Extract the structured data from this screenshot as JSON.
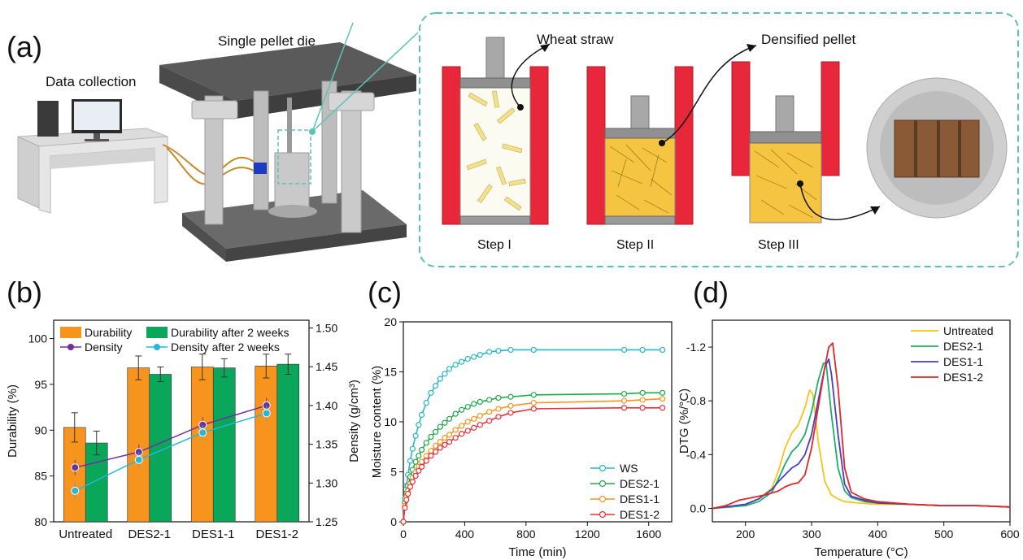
{
  "panel_a": {
    "label": "(a)",
    "data_collection": "Data collection",
    "die_label": "Single pellet die",
    "wheat_straw": "Wheat straw",
    "densified_pellet": "Densified pellet",
    "steps": [
      "Step I",
      "Step II",
      "Step III"
    ]
  },
  "colors": {
    "orange": "#f7941d",
    "green": "#0aa65a",
    "purple": "#7030a0",
    "cyan": "#29b6d6",
    "ws": "#29b6c6",
    "des21": "#22a84a",
    "des11": "#f7941d",
    "des12": "#e8303a",
    "untreated_dtg": "#f5c518",
    "des21_dtg": "#1fae6a",
    "des11_dtg": "#4b3cc4",
    "des12_dtg": "#e02828",
    "teal_border": "#5cc4b4",
    "die_red": "#e8283a"
  },
  "chart_data": [
    {
      "id": "b",
      "panel_label": "(b)",
      "type": "bar",
      "categories": [
        "Untreated",
        "DES2-1",
        "DES1-1",
        "DES1-2"
      ],
      "ylabel": "Durability (%)",
      "ylim": [
        80,
        102
      ],
      "y_ticks": [
        "80",
        "85",
        "90",
        "95",
        "100"
      ],
      "y2label": "Density (g/cm³)",
      "y2lim": [
        1.25,
        1.51
      ],
      "y2_ticks": [
        "1.25",
        "1.30",
        "1.35",
        "1.40",
        "1.45",
        "1.50"
      ],
      "legend": "top",
      "bar_series": [
        {
          "name": "Durability",
          "values": [
            90.3,
            96.8,
            96.9,
            97.0
          ],
          "errors": [
            1.6,
            1.3,
            1.4,
            1.3
          ]
        },
        {
          "name": "Durability after 2 weeks",
          "values": [
            88.6,
            96.1,
            96.8,
            97.2
          ],
          "errors": [
            1.3,
            0.8,
            1.0,
            1.1
          ]
        }
      ],
      "line_series": [
        {
          "name": "Density",
          "values": [
            1.32,
            1.34,
            1.375,
            1.4
          ],
          "errors": [
            0.01,
            0.01,
            0.01,
            0.01
          ]
        },
        {
          "name": "Density after 2 weeks",
          "values": [
            1.29,
            1.33,
            1.365,
            1.39
          ],
          "errors": [
            0.01,
            0.01,
            0.01,
            0.01
          ]
        }
      ]
    },
    {
      "id": "c",
      "panel_label": "(c)",
      "type": "line",
      "xlabel": "Time (min)",
      "ylabel": "Moisture content (%)",
      "xlim": [
        0,
        1750
      ],
      "ylim": [
        0,
        20
      ],
      "x_ticks": [
        "0",
        "400",
        "800",
        "1200",
        "1600"
      ],
      "y_ticks": [
        "0",
        "5",
        "10",
        "15",
        "20"
      ],
      "legend": "bottom-right",
      "x": [
        0,
        10,
        20,
        30,
        45,
        60,
        80,
        100,
        120,
        150,
        180,
        210,
        240,
        270,
        300,
        340,
        380,
        420,
        460,
        500,
        560,
        620,
        700,
        850,
        1440,
        1560,
        1690
      ],
      "series": [
        {
          "name": "WS",
          "values": [
            0,
            2.3,
            3.6,
            4.7,
            6.1,
            7.3,
            8.6,
            9.7,
            10.7,
            11.9,
            12.9,
            13.6,
            14.3,
            14.8,
            15.3,
            15.7,
            16.0,
            16.3,
            16.5,
            16.7,
            17.0,
            17.1,
            17.2,
            17.2,
            17.2,
            17.2,
            17.2
          ]
        },
        {
          "name": "DES2-1",
          "values": [
            0,
            1.9,
            2.9,
            3.6,
            4.5,
            5.2,
            6.0,
            6.6,
            7.2,
            7.9,
            8.5,
            9.0,
            9.5,
            9.9,
            10.3,
            10.8,
            11.2,
            11.5,
            11.8,
            12.0,
            12.2,
            12.4,
            12.5,
            12.7,
            12.8,
            12.9,
            12.9
          ]
        },
        {
          "name": "DES1-1",
          "values": [
            0,
            1.6,
            2.5,
            3.1,
            3.8,
            4.4,
            5.0,
            5.5,
            6.0,
            6.6,
            7.1,
            7.6,
            8.0,
            8.4,
            8.7,
            9.2,
            9.6,
            10.0,
            10.3,
            10.6,
            11.0,
            11.3,
            11.6,
            11.9,
            12.1,
            12.2,
            12.3
          ]
        },
        {
          "name": "DES1-2",
          "values": [
            0,
            1.4,
            2.2,
            2.8,
            3.5,
            4.0,
            4.6,
            5.1,
            5.5,
            6.1,
            6.6,
            7.0,
            7.4,
            7.7,
            8.0,
            8.4,
            8.8,
            9.1,
            9.4,
            9.7,
            10.1,
            10.5,
            10.9,
            11.3,
            11.4,
            11.4,
            11.4
          ]
        }
      ]
    },
    {
      "id": "d",
      "panel_label": "(d)",
      "type": "line",
      "xlabel": "Temperature (°C)",
      "ylabel": "DTG (%/°C)",
      "xlim": [
        150,
        600
      ],
      "ylim": [
        0.1,
        -1.4
      ],
      "inverted_y": true,
      "x_ticks": [
        "200",
        "300",
        "400",
        "500",
        "600"
      ],
      "y_ticks": [
        "0.0",
        "-0.4",
        "-0.8",
        "-1.2"
      ],
      "legend": "top-right",
      "series": [
        {
          "name": "Untreated",
          "x": [
            150,
            180,
            200,
            220,
            240,
            250,
            260,
            270,
            280,
            290,
            297,
            302,
            310,
            320,
            330,
            340,
            350,
            370,
            400,
            450,
            500,
            550,
            600
          ],
          "values": [
            0.0,
            -0.01,
            -0.03,
            -0.07,
            -0.15,
            -0.28,
            -0.45,
            -0.56,
            -0.62,
            -0.75,
            -0.88,
            -0.85,
            -0.5,
            -0.2,
            -0.1,
            -0.07,
            -0.05,
            -0.04,
            -0.03,
            -0.03,
            -0.02,
            -0.02,
            -0.01
          ]
        },
        {
          "name": "DES2-1",
          "x": [
            150,
            200,
            220,
            240,
            250,
            260,
            270,
            280,
            290,
            300,
            310,
            318,
            322,
            330,
            340,
            350,
            360,
            380,
            400,
            450,
            500,
            550,
            600
          ],
          "values": [
            0.0,
            -0.02,
            -0.05,
            -0.12,
            -0.22,
            -0.33,
            -0.42,
            -0.47,
            -0.55,
            -0.72,
            -0.95,
            -1.08,
            -1.08,
            -0.7,
            -0.3,
            -0.13,
            -0.08,
            -0.05,
            -0.04,
            -0.03,
            -0.02,
            -0.02,
            -0.01
          ]
        },
        {
          "name": "DES1-1",
          "x": [
            150,
            200,
            220,
            240,
            250,
            260,
            270,
            280,
            290,
            300,
            310,
            320,
            326,
            330,
            340,
            350,
            360,
            380,
            400,
            450,
            500,
            550,
            600
          ],
          "values": [
            0.0,
            -0.03,
            -0.07,
            -0.14,
            -0.2,
            -0.25,
            -0.3,
            -0.33,
            -0.4,
            -0.55,
            -0.8,
            -1.05,
            -1.11,
            -1.0,
            -0.55,
            -0.18,
            -0.09,
            -0.06,
            -0.04,
            -0.03,
            -0.02,
            -0.02,
            -0.01
          ]
        },
        {
          "name": "DES1-2",
          "x": [
            150,
            170,
            190,
            210,
            230,
            250,
            260,
            270,
            280,
            290,
            300,
            310,
            320,
            326,
            332,
            340,
            350,
            360,
            380,
            400,
            450,
            500,
            550,
            600
          ],
          "values": [
            0.0,
            -0.02,
            -0.06,
            -0.08,
            -0.1,
            -0.13,
            -0.16,
            -0.18,
            -0.19,
            -0.25,
            -0.45,
            -0.75,
            -1.05,
            -1.2,
            -1.23,
            -0.9,
            -0.3,
            -0.12,
            -0.07,
            -0.05,
            -0.03,
            -0.02,
            -0.02,
            -0.01
          ]
        }
      ]
    }
  ]
}
